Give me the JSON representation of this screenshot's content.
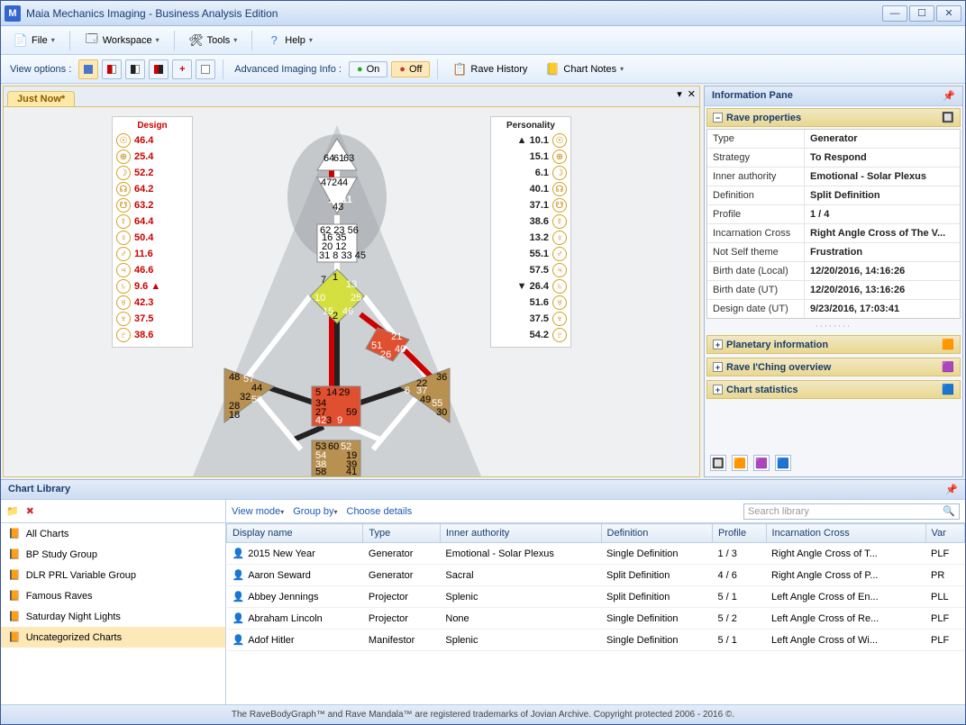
{
  "app_title": "Maia Mechanics Imaging - Business Analysis Edition",
  "menus": {
    "file": "File",
    "workspace": "Workspace",
    "tools": "Tools",
    "help": "Help"
  },
  "toolbar": {
    "view_options": "View options :",
    "adv_info": "Advanced Imaging Info :",
    "on": "On",
    "off": "Off",
    "rave_history": "Rave History",
    "chart_notes": "Chart Notes"
  },
  "tab_name": "Just Now*",
  "design_label": "Design",
  "personality_label": "Personality",
  "design_gates": [
    "46.4",
    "25.4",
    "52.2",
    "64.2",
    "63.2",
    "64.4",
    "50.4",
    "11.6",
    "46.6",
    "9.6 ▲",
    "42.3",
    "37.5",
    "38.6"
  ],
  "personality_gates": [
    "▲ 10.1",
    "15.1",
    "6.1",
    "40.1",
    "37.1",
    "38.6",
    "13.2",
    "55.1",
    "57.5",
    "▼ 26.4",
    "51.6",
    "37.5",
    "54.2"
  ],
  "info_pane": {
    "title": "Information Pane",
    "rave_props": "Rave properties",
    "rows": [
      [
        "Type",
        "Generator"
      ],
      [
        "Strategy",
        "To Respond"
      ],
      [
        "Inner authority",
        "Emotional - Solar Plexus"
      ],
      [
        "Definition",
        "Split Definition"
      ],
      [
        "Profile",
        "1 / 4"
      ],
      [
        "Incarnation Cross",
        "Right Angle Cross of The V..."
      ],
      [
        "Not Self theme",
        "Frustration"
      ],
      [
        "Birth date (Local)",
        "12/20/2016, 14:16:26"
      ],
      [
        "Birth date (UT)",
        "12/20/2016, 13:16:26"
      ],
      [
        "Design date (UT)",
        "9/23/2016, 17:03:41"
      ]
    ],
    "planetary": "Planetary information",
    "iching": "Rave I'Ching overview",
    "stats": "Chart statistics"
  },
  "chart_library": {
    "title": "Chart Library",
    "view_mode": "View mode",
    "group_by": "Group by",
    "choose_details": "Choose details",
    "search_placeholder": "Search library",
    "folders": [
      "All Charts",
      "BP Study Group",
      "DLR PRL Variable Group",
      "Famous Raves",
      "Saturday Night Lights",
      "Uncategorized Charts"
    ],
    "selected_folder": 5,
    "columns": [
      "Display name",
      "Type",
      "Inner authority",
      "Definition",
      "Profile",
      "Incarnation Cross",
      "Var"
    ],
    "rows": [
      [
        "2015 New Year",
        "Generator",
        "Emotional - Solar Plexus",
        "Single Definition",
        "1 / 3",
        "Right Angle Cross of T...",
        "PLF"
      ],
      [
        "Aaron Seward",
        "Generator",
        "Sacral",
        "Split Definition",
        "4 / 6",
        "Right Angle Cross of P...",
        "PR"
      ],
      [
        "Abbey Jennings",
        "Projector",
        "Splenic",
        "Split Definition",
        "5 / 1",
        "Left Angle Cross of En...",
        "PLL"
      ],
      [
        "Abraham Lincoln",
        "Projector",
        "None",
        "Single Definition",
        "5 / 2",
        "Left Angle Cross of Re...",
        "PLF"
      ],
      [
        "Adof Hitler",
        "Manifestor",
        "Splenic",
        "Single Definition",
        "5 / 1",
        "Left Angle Cross of Wi...",
        "PLF"
      ]
    ]
  },
  "statusbar": "The RaveBodyGraph™ and Rave Mandala™ are registered trademarks of Jovian Archive. Copyright protected 2006 - 2016 ©.",
  "colors": {
    "center_defined_yellow": "#d4e040",
    "center_defined_red": "#e05030",
    "center_defined_brown": "#b89050",
    "center_white": "#ffffff",
    "design_red": "#cc0000",
    "personality_black": "#222222"
  }
}
